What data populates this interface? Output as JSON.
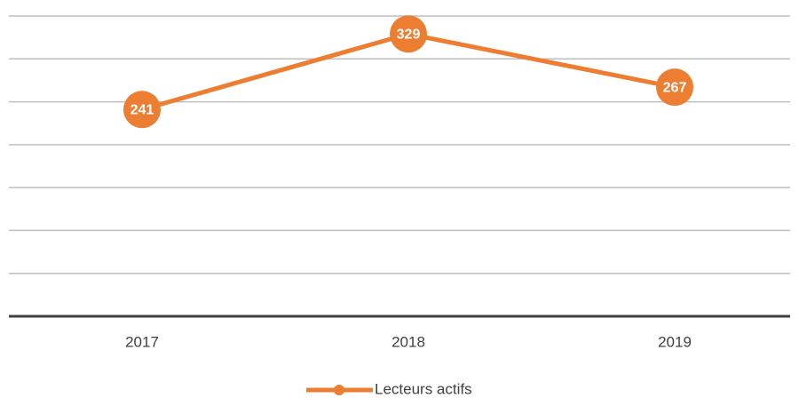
{
  "chart_data": {
    "type": "line",
    "categories": [
      "2017",
      "2018",
      "2019"
    ],
    "series": [
      {
        "name": "Lecteurs actifs",
        "color": "#ed7d31",
        "values": [
          241,
          329,
          267
        ]
      }
    ],
    "ylim": [
      0,
      350
    ],
    "yticks": [
      0,
      50,
      100,
      150,
      200,
      250,
      300,
      350
    ],
    "grid": true,
    "legend": "bottom"
  }
}
